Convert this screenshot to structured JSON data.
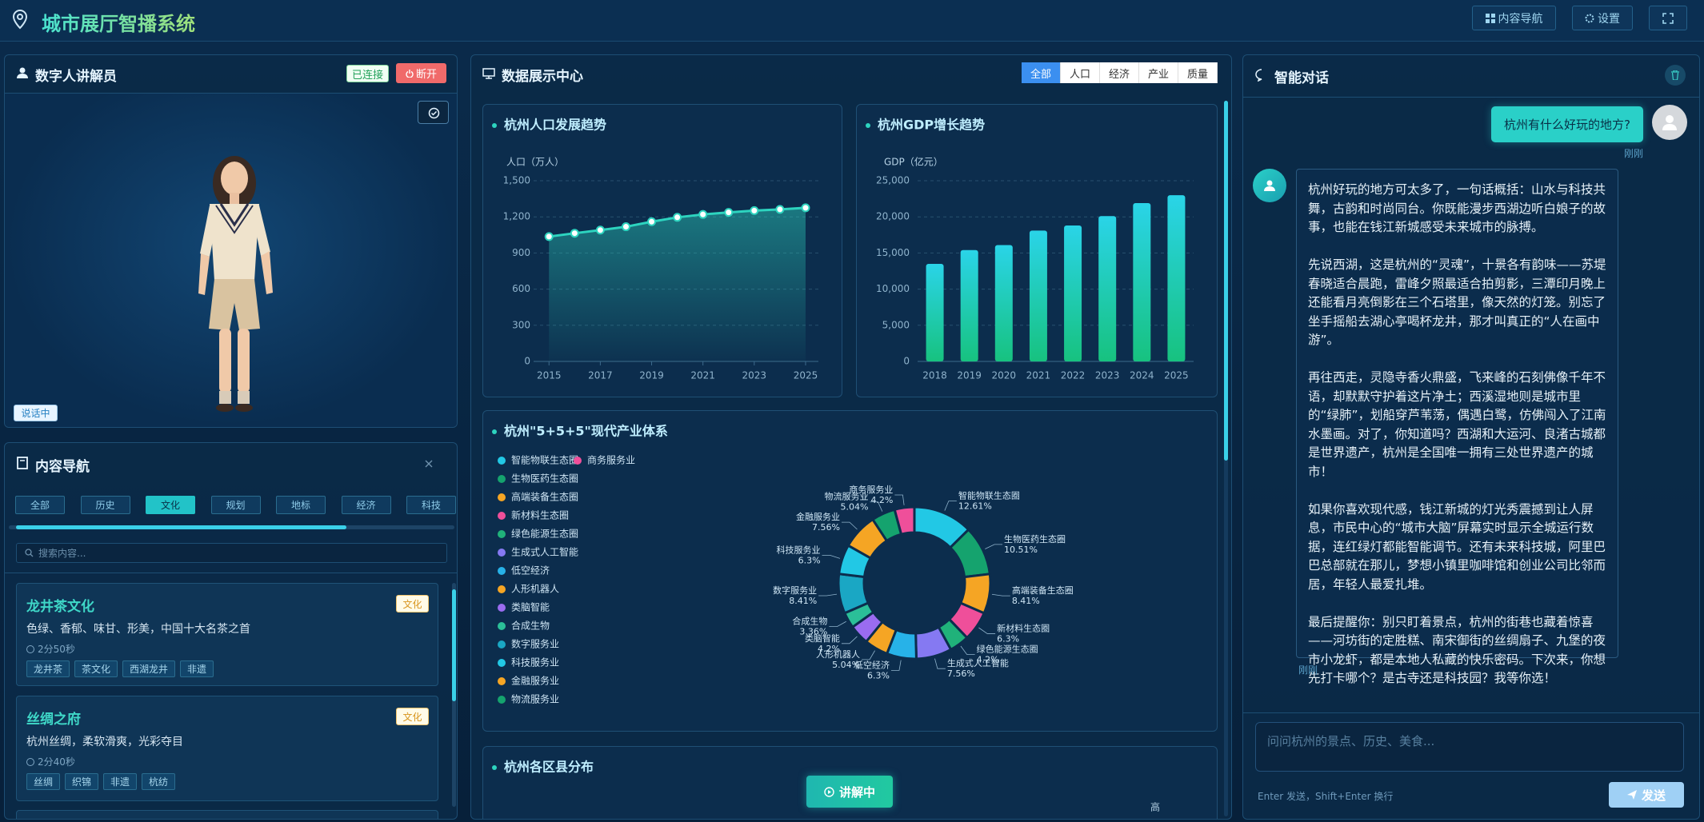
{
  "header": {
    "title": "城市展厅智播系统",
    "nav_button": "内容导航",
    "settings_button": "设置"
  },
  "presenter": {
    "title": "数字人讲解员",
    "status": "已连接",
    "disconnect": "断开",
    "badge": "说话中"
  },
  "content_nav": {
    "title": "内容导航",
    "tabs": [
      "全部",
      "历史",
      "文化",
      "规划",
      "地标",
      "经济",
      "科技"
    ],
    "search_placeholder": "搜索内容...",
    "cards": [
      {
        "title": "龙井茶文化",
        "tag": "文化",
        "description": "色绿、香郁、味甘、形美，中国十大名茶之首",
        "duration": "2分50秒",
        "tags": [
          "龙井茶",
          "茶文化",
          "西湖龙井",
          "非遗"
        ]
      },
      {
        "title": "丝绸之府",
        "tag": "文化",
        "description": "杭州丝绸，柔软滑爽，光彩夺目",
        "duration": "2分40秒",
        "tags": [
          "丝绸",
          "织锦",
          "非遗",
          "杭纺"
        ]
      }
    ]
  },
  "data_center": {
    "title": "数据展示中心",
    "tabs": [
      "全部",
      "人口",
      "经济",
      "产业",
      "质量"
    ]
  },
  "chart_data": [
    {
      "type": "line",
      "title": "杭州人口发展趋势",
      "y_label": "人口（万人）",
      "x": [
        2015,
        2016,
        2017,
        2018,
        2019,
        2020,
        2021,
        2022,
        2023,
        2024,
        2025
      ],
      "values": [
        1036,
        1064,
        1090,
        1118,
        1160,
        1196,
        1220,
        1237,
        1252,
        1262,
        1275
      ],
      "color": "#2dd4bf",
      "xlim": [
        2014.4,
        2025.5
      ],
      "xticks": [
        2015,
        2017,
        2019,
        2021,
        2023,
        2025
      ],
      "ylim": [
        0,
        1500
      ],
      "yticks": [
        0,
        300,
        600,
        900,
        {
          "value": 1200,
          "label": "1,200"
        },
        {
          "value": 1500,
          "label": "1,500"
        }
      ],
      "grid": true
    },
    {
      "type": "bar",
      "title": "杭州GDP增长趋势",
      "y_label": "GDP（亿元）",
      "categories": [
        "2018",
        "2019",
        "2020",
        "2021",
        "2022",
        "2023",
        "2024",
        "2025"
      ],
      "values": [
        13500,
        15400,
        16100,
        18100,
        18800,
        20100,
        21900,
        23000
      ],
      "colors": [
        "#2ad4e8",
        "#17c27f"
      ],
      "ylim": [
        0,
        25000
      ],
      "yticks": [
        0,
        {
          "value": 5000,
          "label": "5,000"
        },
        {
          "value": 10000,
          "label": "10,000"
        },
        {
          "value": 15000,
          "label": "15,000"
        },
        {
          "value": 20000,
          "label": "20,000"
        },
        {
          "value": 25000,
          "label": "25,000"
        }
      ],
      "grid": true
    },
    {
      "type": "pie",
      "title": "杭州\"5+5+5\"现代产业体系",
      "categories": [
        "智能物联生态圈",
        "生物医药生态圈",
        "高端装备生态圈",
        "新材料生态圈",
        "绿色能源生态圈",
        "生成式人工智能",
        "低空经济",
        "人形机器人",
        "类脑智能",
        "合成生物",
        "数字服务业",
        "科技服务业",
        "金融服务业",
        "物流服务业",
        "商务服务业"
      ],
      "values": [
        12.61,
        10.51,
        8.41,
        6.3,
        4.2,
        7.56,
        6.3,
        5.04,
        4.2,
        3.36,
        8.41,
        6.3,
        7.56,
        5.04,
        4.2
      ],
      "value_labels": [
        "12.61%",
        "10.51%",
        "8.41%",
        "6.3%",
        "4.2%",
        "7.56%",
        "6.3%",
        "5.04%",
        "4.2%",
        "3.36%",
        "8.41%",
        "6.3%",
        "7.56%",
        "5.04%",
        "4.2%"
      ],
      "colors": [
        "#22c8e5",
        "#15a36e",
        "#f5a524",
        "#ef4f9a",
        "#20b27a",
        "#8579f2",
        "#27b2e8",
        "#f5a524",
        "#9a6cf0",
        "#2bbf98",
        "#1aa7c4",
        "#22c8e5",
        "#f5a524",
        "#15a36e",
        "#ef4f9a"
      ],
      "donut": true
    }
  ],
  "district": {
    "title": "杭州各区县分布",
    "legend_label": "高"
  },
  "play_button": "讲解中",
  "chat": {
    "title": "智能对话",
    "question": "杭州有什么好玩的地方?",
    "question_time": "刚刚",
    "answer": [
      "杭州好玩的地方可太多了，一句话概括：山水与科技共舞，古韵和时尚同台。你既能漫步西湖边听白娘子的故事，也能在钱江新城感受未来城市的脉搏。",
      "先说西湖，这是杭州的“灵魂”，十景各有韵味——苏堤春晓适合晨跑，雷峰夕照最适合拍剪影，三潭印月晚上还能看月亮倒影在三个石塔里，像天然的灯笼。别忘了坐手摇船去湖心亭喝杯龙井，那才叫真正的“人在画中游”。",
      "再往西走，灵隐寺香火鼎盛，飞来峰的石刻佛像千年不语，却默默守护着这片净土；西溪湿地则是城市里的“绿肺”，划船穿芦苇荡，偶遇白鹭，仿佛闯入了江南水墨画。对了，你知道吗？西湖和大运河、良渚古城都是世界遗产，杭州是全国唯一拥有三处世界遗产的城市！",
      "如果你喜欢现代感，钱江新城的灯光秀震撼到让人屏息，市民中心的“城市大脑”屏幕实时显示全城运行数据，连红绿灯都能智能调节。还有未来科技城，阿里巴巴总部就在那儿，梦想小镇里咖啡馆和创业公司比邻而居，年轻人最爱扎堆。",
      "最后提醒你：别只盯着景点，杭州的街巷也藏着惊喜——河坊街的定胜糕、南宋御街的丝绸扇子、九堡的夜市小龙虾，都是本地人私藏的快乐密码。下次来，你想先打卡哪个？是古寺还是科技园？我等你选！"
    ],
    "answer_time": "刚刚",
    "input_placeholder": "问问杭州的景点、历史、美食...",
    "hint": "Enter 发送，Shift+Enter 换行",
    "send": "发送"
  }
}
